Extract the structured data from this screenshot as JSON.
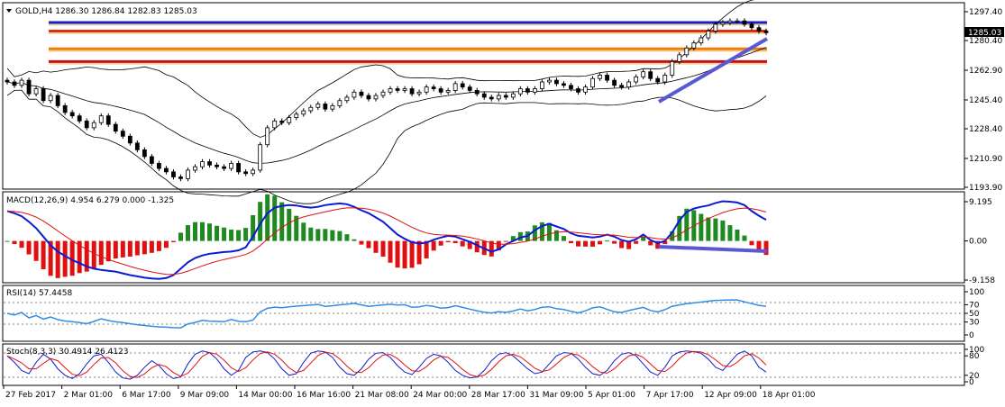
{
  "main": {
    "header": "GOLD,H4  1286.30 1286.84 1282.83 1285.03",
    "current_price": "1285.03",
    "y_ticks": [
      "1297.40",
      "1280.40",
      "1262.90",
      "1245.40",
      "1228.40",
      "1210.90",
      "1193.90"
    ]
  },
  "macd": {
    "header": "MACD(12,26,9) 4.954 6.279 0.000 -1.325",
    "y_ticks": [
      "9.195",
      "0.00",
      "-9.158"
    ]
  },
  "rsi": {
    "header": "RSI(14) 57.4458",
    "y_ticks": [
      "100",
      "70",
      "50",
      "30",
      "0"
    ]
  },
  "stoch": {
    "header": "Stoch(8,3,3) 30.4914 26.4123",
    "y_ticks": [
      "100",
      "80",
      "20",
      "0"
    ]
  },
  "x_ticks": [
    "27 Feb 2017",
    "2 Mar 01:00",
    "6 Mar 17:00",
    "9 Mar 09:00",
    "14 Mar 00:00",
    "16 Mar 16:00",
    "21 Mar 08:00",
    "24 Mar 00:00",
    "28 Mar 17:00",
    "31 Mar 09:00",
    "5 Apr 01:00",
    "7 Apr 17:00",
    "12 Apr 09:00",
    "18 Apr 01:00"
  ],
  "chart_data": [
    {
      "type": "candlestick",
      "title": "GOLD,H4",
      "ylim": [
        1193.9,
        1297.4
      ],
      "levels": [
        1291.0,
        1286.0,
        1275.5,
        1268.0
      ],
      "close": [
        1256,
        1254,
        1257,
        1249,
        1252,
        1245,
        1248,
        1242,
        1238,
        1236,
        1233,
        1229,
        1232,
        1236,
        1231,
        1227,
        1224,
        1220,
        1216,
        1212,
        1208,
        1205,
        1203,
        1200,
        1199,
        1204,
        1206,
        1209,
        1207,
        1206,
        1205,
        1208,
        1203,
        1202,
        1204,
        1219,
        1229,
        1233,
        1232,
        1235,
        1237,
        1239,
        1241,
        1243,
        1240,
        1242,
        1245,
        1247,
        1250,
        1248,
        1246,
        1248,
        1250,
        1252,
        1251,
        1252,
        1249,
        1250,
        1253,
        1252,
        1250,
        1251,
        1255,
        1253,
        1251,
        1249,
        1247,
        1246,
        1248,
        1247,
        1249,
        1252,
        1250,
        1252,
        1256,
        1257,
        1255,
        1254,
        1252,
        1250,
        1253,
        1258,
        1260,
        1257,
        1254,
        1253,
        1256,
        1259,
        1262,
        1258,
        1256,
        1260,
        1268,
        1272,
        1276,
        1279,
        1282,
        1286,
        1290,
        1291,
        1292,
        1292,
        1290,
        1288,
        1286,
        1285
      ],
      "macd": [
        7,
        6.5,
        5.8,
        4.5,
        3,
        1,
        -1,
        -2.5,
        -3.5,
        -4.5,
        -5.2,
        -6,
        -6.5,
        -6.8,
        -7,
        -7.2,
        -7.6,
        -8,
        -8.3,
        -8.6,
        -8.8,
        -8.9,
        -8.7,
        -8,
        -6.5,
        -5,
        -4,
        -3.4,
        -3,
        -2.8,
        -2.6,
        -2.5,
        -2.2,
        -1.5,
        1,
        4,
        6.5,
        7.8,
        8.2,
        8.4,
        8.3,
        8,
        7.8,
        8,
        8.4,
        8.6,
        8.8,
        8.6,
        8,
        7.2,
        6.5,
        5.5,
        4.5,
        3,
        1.5,
        0.5,
        -0.3,
        -0.6,
        -0.4,
        0.3,
        0.8,
        1.2,
        1,
        0.4,
        -0.2,
        -1,
        -1.8,
        -2.5,
        -2,
        -0.8,
        0,
        0.8,
        1.2,
        2.5,
        3.5,
        4,
        3.4,
        2.8,
        1.8,
        1.2,
        1,
        0.8,
        1,
        1.5,
        1,
        0.2,
        -0.2,
        0.4,
        1.5,
        0.2,
        -0.5,
        0,
        2,
        4.8,
        6.8,
        7.6,
        8,
        8.3,
        8.9,
        9.3,
        9.2,
        9,
        8.4,
        7,
        5.9,
        4.95
      ],
      "stoch": [
        80,
        60,
        35,
        25,
        60,
        85,
        70,
        40,
        20,
        10,
        25,
        55,
        80,
        85,
        60,
        30,
        12,
        8,
        20,
        45,
        65,
        50,
        25,
        10,
        15,
        55,
        85,
        95,
        90,
        70,
        40,
        20,
        35,
        75,
        92,
        95,
        90,
        70,
        40,
        20,
        25,
        60,
        88,
        95,
        92,
        75,
        45,
        25,
        20,
        40,
        70,
        88,
        90,
        75,
        50,
        30,
        22,
        45,
        72,
        85,
        80,
        60,
        35,
        20,
        12,
        15,
        35,
        65,
        85,
        90,
        80,
        60,
        40,
        25,
        30,
        55,
        80,
        90,
        88,
        70,
        45,
        25,
        20,
        35,
        65,
        85,
        90,
        80,
        55,
        30,
        20,
        45,
        80,
        92,
        95,
        93,
        88,
        70,
        45,
        35,
        60,
        85,
        95,
        80,
        45,
        30
      ]
    }
  ]
}
